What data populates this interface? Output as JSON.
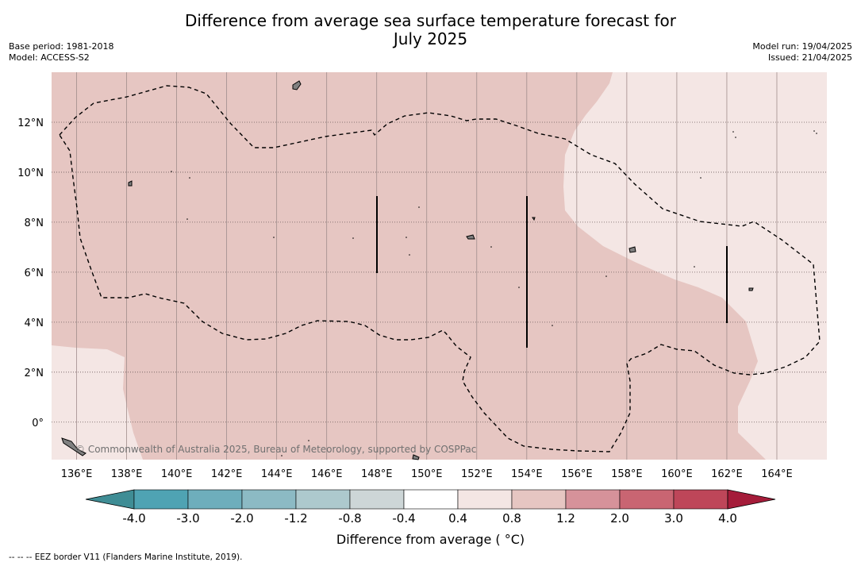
{
  "title": {
    "line1": "Difference from average sea surface temperature forecast for",
    "line2": "July 2025"
  },
  "meta": {
    "base_period": "Base period: 1981-2018",
    "model": "Model: ACCESS-S2",
    "model_run": "Model run: 19/04/2025",
    "issued": "Issued: 21/04/2025"
  },
  "map": {
    "lon_labels": [
      "136°E",
      "138°E",
      "140°E",
      "142°E",
      "144°E",
      "146°E",
      "148°E",
      "150°E",
      "152°E",
      "154°E",
      "156°E",
      "158°E",
      "160°E",
      "162°E",
      "164°E"
    ],
    "lat_labels": [
      "12°N",
      "10°N",
      "8°N",
      "6°N",
      "4°N",
      "2°N",
      "0°"
    ],
    "extent": {
      "lon_min": 135,
      "lon_max": 166,
      "lat_min": -1.5,
      "lat_max": 14
    },
    "watermark": "© Commonwealth of Australia 2025, Bureau of Meteorology, supported by COSPPac",
    "colors": {
      "land": "#808080",
      "anom_0_4_0_8": "#f4e6e4",
      "anom_0_8_1_2": "#e6c6c2"
    }
  },
  "colorbar": {
    "title": "Difference from average ( °C)",
    "ticks": [
      "-4.0",
      "-3.0",
      "-2.0",
      "-1.2",
      "-0.8",
      "-0.4",
      "0.4",
      "0.8",
      "1.2",
      "2.0",
      "3.0",
      "4.0"
    ],
    "colors": [
      "#3f8d95",
      "#4fa3b3",
      "#6eaebc",
      "#8cbac4",
      "#adc9cd",
      "#cdd6d7",
      "#ffffff",
      "#f4e6e4",
      "#e6c6c2",
      "#d6929a",
      "#c96572",
      "#be4659",
      "#a51c3a"
    ]
  },
  "footnote": "--  --  -- EEZ border V11 (Flanders Marine Institute, 2019)."
}
